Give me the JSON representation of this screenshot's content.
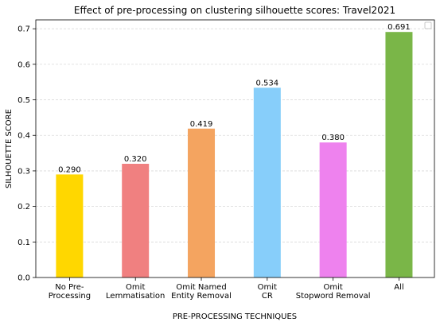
{
  "chart_data": {
    "type": "bar",
    "title": "Effect of pre-processing on clustering silhouette scores: Travel2021",
    "xlabel": "PRE-PROCESSING TECHNIQUES",
    "ylabel": "SILHOUETTE SCORE",
    "ylim": [
      0,
      0.725
    ],
    "yticks": [
      "0.0",
      "0.1",
      "0.2",
      "0.3",
      "0.4",
      "0.5",
      "0.6",
      "0.7"
    ],
    "grid": true,
    "legend": "top-right (empty)",
    "categories": [
      [
        "No Pre-",
        "Processing"
      ],
      [
        "Omit",
        "Lemmatisation"
      ],
      [
        "Omit Named",
        "Entity Removal"
      ],
      [
        "Omit",
        "CR"
      ],
      [
        "Omit",
        "Stopword Removal"
      ],
      [
        "All"
      ]
    ],
    "values": [
      0.29,
      0.32,
      0.419,
      0.534,
      0.38,
      0.691
    ],
    "value_labels": [
      "0.290",
      "0.320",
      "0.419",
      "0.534",
      "0.380",
      "0.691"
    ],
    "colors": [
      "#ffd700",
      "#f08080",
      "#f4a460",
      "#87cefa",
      "#ee82ee",
      "#7ab648"
    ]
  }
}
